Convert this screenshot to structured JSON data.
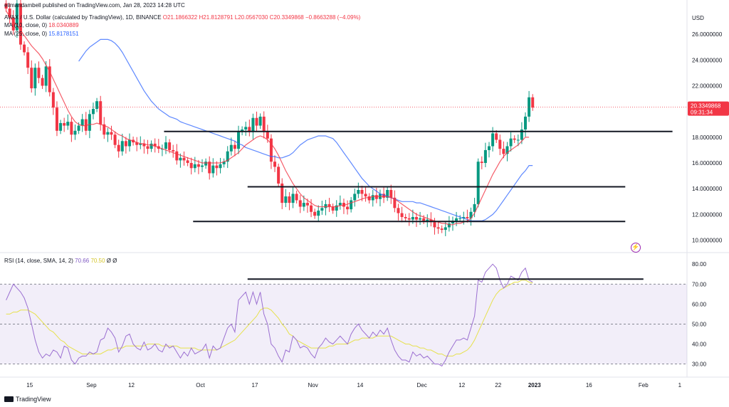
{
  "header": {
    "publisher": "elimandambell published on TradingView.com, Jan 28, 2023 14:28 UTC",
    "symbol_line_prefix": "AVAX / U.S. Dollar (calculated by TradingView), 1D, BINANCE",
    "ohlc": "O21.1866322  H21.8128791  L20.0567030  C20.3349868  −0.8663288 (−4.09%)",
    "ma10_label": "MA (10, close, 0)",
    "ma10_value": "18.0340889",
    "ma25_label": "MA (25, close, 0)",
    "ma25_value": "15.8178151",
    "rsi_label": "RSI (14, close, SMA, 14, 2)",
    "rsi_value": "70.66",
    "rsi_ma_value": "70.50",
    "rsi_extra": "Ø Ø"
  },
  "branding": {
    "name": "TradingView"
  },
  "chart_data": [
    {
      "type": "candlestick",
      "currency": "USD",
      "ylim": [
        9.2,
        28.0
      ],
      "yticks": [
        10,
        12,
        14,
        16,
        18,
        20,
        22,
        24,
        26
      ],
      "ytick_labels": [
        "10.0000000",
        "12.0000000",
        "14.0000000",
        "16.0000000",
        "18.0000000",
        "20.0000000",
        "22.0000000",
        "24.0000000",
        "26.0000000"
      ],
      "xticks": [
        {
          "label": "15",
          "x": 7
        },
        {
          "label": "Sep",
          "x": 24
        },
        {
          "label": "12",
          "x": 35
        },
        {
          "label": "Oct",
          "x": 54
        },
        {
          "label": "17",
          "x": 69
        },
        {
          "label": "Nov",
          "x": 85
        },
        {
          "label": "14",
          "x": 98
        },
        {
          "label": "Dec",
          "x": 115
        },
        {
          "label": "12",
          "x": 126
        },
        {
          "label": "22",
          "x": 136
        },
        {
          "label": "2023",
          "x": 146
        },
        {
          "label": "16",
          "x": 161
        },
        {
          "label": "Feb",
          "x": 176
        },
        {
          "label": "1",
          "x": 186
        }
      ],
      "last_price": {
        "value": 20.3349868,
        "label": "20.3349868",
        "countdown": "09:31:34"
      },
      "closes": [
        28.0,
        27.3,
        26.3,
        28.4,
        25.2,
        24.6,
        23.4,
        21.8,
        23.4,
        22.6,
        22.0,
        23.5,
        21.5,
        20.3,
        18.5,
        19.1,
        18.9,
        19.2,
        18.2,
        18.5,
        18.9,
        19.4,
        18.5,
        19.8,
        20.2,
        20.8,
        19.0,
        18.2,
        18.4,
        18.2,
        17.4,
        16.9,
        17.7,
        17.3,
        17.8,
        17.6,
        17.4,
        17.5,
        17.3,
        17.1,
        17.5,
        17.3,
        17.1,
        17.1,
        17.6,
        17.0,
        16.9,
        16.2,
        16.4,
        16.2,
        16.0,
        15.6,
        15.9,
        15.7,
        15.8,
        16.1,
        15.2,
        15.8,
        15.6,
        15.9,
        16.1,
        16.9,
        17.4,
        17.1,
        18.4,
        18.6,
        18.8,
        18.4,
        19.5,
        18.9,
        19.6,
        18.4,
        17.9,
        16.1,
        15.7,
        14.4,
        12.9,
        13.4,
        12.9,
        13.6,
        13.1,
        12.6,
        12.9,
        12.7,
        12.2,
        11.9,
        12.3,
        12.5,
        12.8,
        12.6,
        12.3,
        12.7,
        12.9,
        12.6,
        12.4,
        13.1,
        13.6,
        13.9,
        13.6,
        13.4,
        13.1,
        13.5,
        13.2,
        13.6,
        13.3,
        13.9,
        13.3,
        12.5,
        12.1,
        11.8,
        11.7,
        11.6,
        11.8,
        11.6,
        11.7,
        11.5,
        11.6,
        11.4,
        11.0,
        10.9,
        10.8,
        11.0,
        11.3,
        11.5,
        11.7,
        11.7,
        11.8,
        11.7,
        12.2,
        12.8,
        16.1,
        16.0,
        17.0,
        17.3,
        18.3,
        17.8,
        17.1,
        16.7,
        17.3,
        17.9,
        17.8,
        17.8,
        18.6,
        19.6,
        21.1,
        20.3
      ],
      "ma10": [
        27.8,
        27.4,
        27.0,
        26.7,
        26.3,
        25.9,
        25.5,
        25.1,
        24.8,
        24.5,
        24.1,
        23.6,
        23.1,
        22.5,
        21.9,
        21.3,
        20.7,
        20.1,
        19.6,
        19.2,
        19.0,
        18.9,
        18.9,
        19.0,
        19.0,
        19.1,
        19.0,
        18.9,
        18.8,
        18.6,
        18.4,
        18.2,
        18.1,
        17.9,
        17.8,
        17.7,
        17.6,
        17.5,
        17.5,
        17.4,
        17.4,
        17.3,
        17.2,
        17.1,
        17.0,
        16.9,
        16.8,
        16.7,
        16.6,
        16.5,
        16.4,
        16.3,
        16.2,
        16.1,
        16.0,
        16.0,
        16.0,
        16.0,
        16.0,
        16.0,
        16.1,
        16.2,
        16.4,
        16.6,
        16.8,
        17.1,
        17.4,
        17.6,
        17.8,
        18.0,
        18.1,
        18.0,
        17.8,
        17.5,
        17.1,
        16.6,
        16.0,
        15.4,
        14.9,
        14.4,
        14.0,
        13.6,
        13.3,
        13.1,
        12.9,
        12.7,
        12.6,
        12.6,
        12.6,
        12.6,
        12.6,
        12.6,
        12.7,
        12.7,
        12.8,
        12.9,
        13.0,
        13.1,
        13.2,
        13.3,
        13.3,
        13.4,
        13.4,
        13.4,
        13.4,
        13.4,
        13.3,
        13.2,
        13.0,
        12.8,
        12.6,
        12.4,
        12.2,
        12.0,
        11.9,
        11.8,
        11.7,
        11.6,
        11.5,
        11.4,
        11.3,
        11.3,
        11.2,
        11.2,
        11.3,
        11.3,
        11.4,
        11.5,
        11.7,
        12.1,
        12.7,
        13.3,
        13.9,
        14.5,
        15.1,
        15.6,
        16.1,
        16.5,
        16.8,
        17.0,
        17.2,
        17.4,
        17.7,
        18.0,
        18.0
      ],
      "ma25": [
        23.9,
        24.3,
        24.7,
        25.0,
        25.2,
        25.4,
        25.6,
        25.6,
        25.6,
        25.5,
        25.3,
        25.0,
        24.6,
        24.1,
        23.6,
        23.1,
        22.6,
        22.1,
        21.6,
        21.2,
        20.8,
        20.5,
        20.2,
        20.0,
        19.8,
        19.6,
        19.5,
        19.4,
        19.2,
        19.1,
        19.0,
        18.9,
        18.8,
        18.7,
        18.6,
        18.5,
        18.4,
        18.3,
        18.2,
        18.1,
        18.0,
        17.9,
        17.8,
        17.7,
        17.5,
        17.4,
        17.2,
        17.1,
        17.0,
        16.9,
        16.8,
        16.7,
        16.6,
        16.5,
        16.5,
        16.4,
        16.4,
        16.5,
        16.6,
        16.8,
        17.1,
        17.4,
        17.6,
        17.8,
        17.9,
        18.0,
        18.1,
        18.1,
        18.1,
        18.0,
        17.9,
        17.6,
        17.2,
        16.8,
        16.4,
        16.0,
        15.6,
        15.2,
        14.8,
        14.5,
        14.2,
        14.0,
        13.8,
        13.6,
        13.5,
        13.4,
        13.3,
        13.2,
        13.1,
        13.0,
        13.0,
        13.0,
        13.0,
        12.9,
        12.9,
        12.8,
        12.7,
        12.6,
        12.5,
        12.4,
        12.3,
        12.2,
        12.1,
        12.0,
        11.9,
        11.8,
        11.7,
        11.6,
        11.5,
        11.5,
        11.5,
        11.5,
        11.6,
        11.8,
        12.0,
        12.3,
        12.7,
        13.1,
        13.5,
        13.9,
        14.3,
        14.7,
        15.1,
        15.4,
        15.8,
        15.8
      ],
      "horizontal_lines": [
        {
          "y": 18.45,
          "x_start": 44,
          "x_end": 184
        },
        {
          "y": 14.15,
          "x_start": 67,
          "x_end": 171
        },
        {
          "y": 11.45,
          "x_start": 52,
          "x_end": 171
        }
      ]
    },
    {
      "type": "line",
      "name": "RSI (14, close, SMA, 14, 2)",
      "ylim": [
        27,
        84
      ],
      "yticks": [
        30,
        40,
        50,
        60,
        70,
        80
      ],
      "ytick_labels": [
        "30.00",
        "40.00",
        "50.00",
        "60.00",
        "70.00",
        "80.00"
      ],
      "overbought": 70,
      "oversold": 30,
      "rsi": [
        62,
        66,
        70,
        68,
        66,
        63,
        58,
        50,
        42,
        36,
        33,
        35,
        34,
        37,
        36,
        33,
        39,
        38,
        32,
        30,
        33,
        34,
        34,
        36,
        35,
        36,
        42,
        43,
        48,
        46,
        43,
        36,
        39,
        44,
        45,
        40,
        38,
        37,
        41,
        37,
        38,
        40,
        37,
        36,
        40,
        38,
        39,
        36,
        33,
        36,
        34,
        38,
        35,
        36,
        37,
        40,
        33,
        39,
        37,
        38,
        43,
        48,
        50,
        46,
        62,
        64,
        66,
        60,
        66,
        60,
        66,
        55,
        50,
        40,
        38,
        34,
        31,
        37,
        36,
        44,
        42,
        38,
        39,
        38,
        35,
        33,
        38,
        40,
        43,
        41,
        40,
        42,
        44,
        42,
        40,
        45,
        48,
        50,
        47,
        45,
        43,
        46,
        44,
        47,
        45,
        48,
        42,
        37,
        34,
        32,
        32,
        31,
        36,
        34,
        35,
        33,
        34,
        32,
        30,
        30,
        29,
        32,
        36,
        39,
        42,
        42,
        43,
        42,
        48,
        54,
        72,
        71,
        76,
        78,
        80,
        78,
        72,
        68,
        70,
        74,
        73,
        72,
        76,
        78,
        72,
        71
      ],
      "rsi_ma": [
        55,
        55,
        56,
        56,
        57,
        57,
        57,
        56,
        55,
        53,
        51,
        49,
        47,
        46,
        44,
        42,
        41,
        39,
        38,
        37,
        36,
        35,
        35,
        35,
        35,
        35,
        35,
        36,
        37,
        37,
        38,
        38,
        38,
        39,
        39,
        39,
        39,
        39,
        39,
        40,
        40,
        40,
        40,
        39,
        39,
        39,
        39,
        39,
        38,
        38,
        38,
        38,
        38,
        37,
        37,
        37,
        37,
        37,
        37,
        38,
        39,
        40,
        41,
        42,
        44,
        46,
        48,
        50,
        52,
        54,
        57,
        58,
        58,
        57,
        55,
        53,
        50,
        48,
        45,
        44,
        42,
        41,
        40,
        39,
        38,
        38,
        38,
        38,
        38,
        39,
        39,
        40,
        40,
        40,
        40,
        41,
        42,
        42,
        43,
        43,
        43,
        43,
        44,
        44,
        44,
        44,
        44,
        43,
        42,
        41,
        40,
        40,
        39,
        39,
        38,
        38,
        37,
        37,
        36,
        35,
        35,
        34,
        34,
        34,
        35,
        35,
        36,
        37,
        39,
        42,
        46,
        50,
        54,
        58,
        62,
        65,
        67,
        68,
        69,
        70,
        71,
        71,
        72,
        72,
        71,
        70.5
      ],
      "horizontal_lines": [
        {
          "y": 72.5,
          "x_start": 67,
          "x_end": 176
        }
      ]
    }
  ]
}
